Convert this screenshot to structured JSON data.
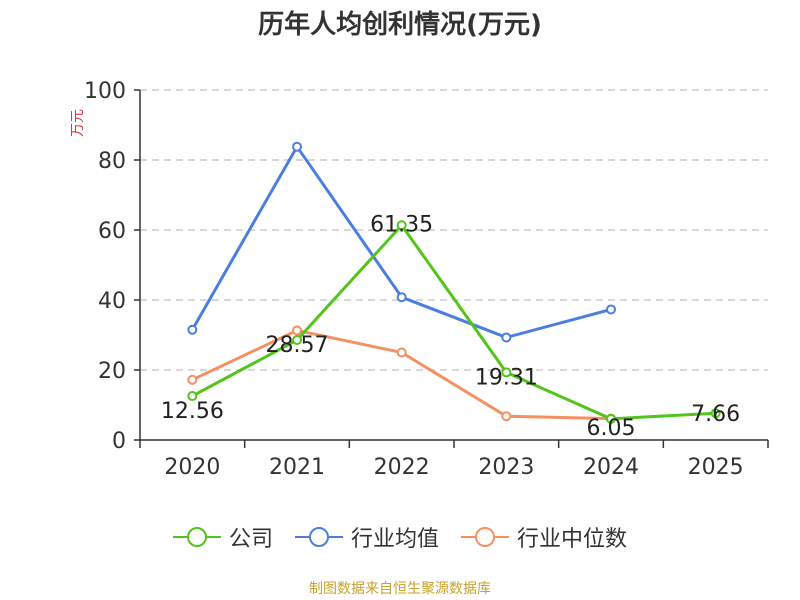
{
  "title": "历年人均创利情况(万元)",
  "source": "制图数据来自恒生聚源数据库",
  "chart_data": {
    "type": "line",
    "title": "历年人均创利情况(万元)",
    "ylabel": "万元",
    "xlabel": "",
    "ylim": [
      0,
      100
    ],
    "yticks": [
      0,
      20,
      40,
      60,
      80,
      100
    ],
    "categories": [
      "2020",
      "2021",
      "2022",
      "2023",
      "2024",
      "2025"
    ],
    "grid": true,
    "legend_position": "bottom",
    "series": [
      {
        "name": "公司",
        "color": "#52c41a",
        "values": [
          12.56,
          28.57,
          61.35,
          19.31,
          6.05,
          7.66
        ],
        "labels": [
          "12.56",
          "28.57",
          "61.35",
          "19.31",
          "6.05",
          "7.66"
        ]
      },
      {
        "name": "行业均值",
        "color": "#4a7fe0",
        "values": [
          31.5,
          83.8,
          40.8,
          29.3,
          37.3,
          null
        ]
      },
      {
        "name": "行业中位数",
        "color": "#f59063",
        "values": [
          17.2,
          31.3,
          25.0,
          6.8,
          6.1,
          null
        ]
      }
    ]
  }
}
